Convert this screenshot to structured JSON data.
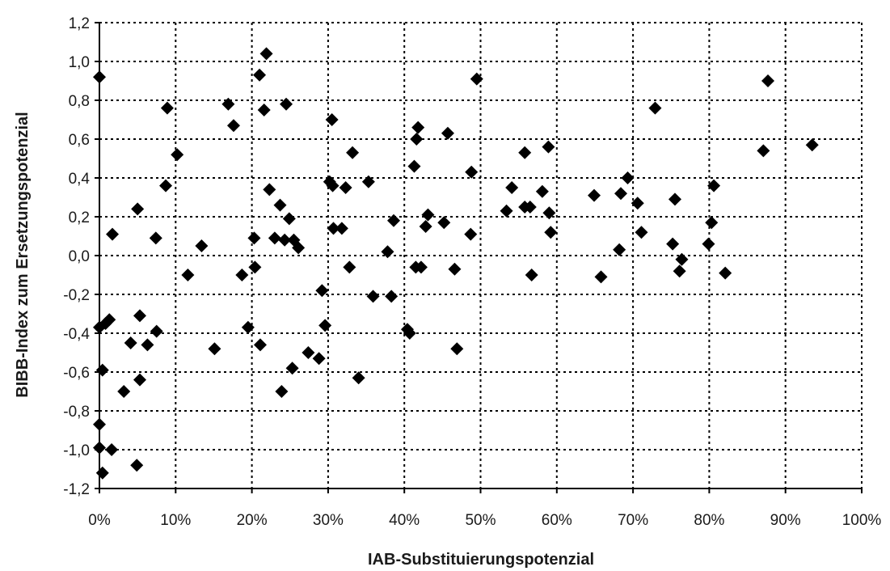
{
  "chart_data": {
    "type": "scatter",
    "title": "",
    "xlabel": "IAB-Substituierungspotenzial",
    "ylabel": "BIBB-Index zum Ersetzungspotenzial",
    "xlim": [
      0,
      100
    ],
    "ylim": [
      -1.2,
      1.2
    ],
    "grid": true,
    "legend": "none",
    "marker": "diamond",
    "marker_color": "#000000",
    "x_ticks": [
      {
        "value": 0,
        "label": "0%"
      },
      {
        "value": 10,
        "label": "10%"
      },
      {
        "value": 20,
        "label": "20%"
      },
      {
        "value": 30,
        "label": "30%"
      },
      {
        "value": 40,
        "label": "40%"
      },
      {
        "value": 50,
        "label": "50%"
      },
      {
        "value": 60,
        "label": "60%"
      },
      {
        "value": 70,
        "label": "70%"
      },
      {
        "value": 80,
        "label": "80%"
      },
      {
        "value": 90,
        "label": "90%"
      },
      {
        "value": 100,
        "label": "100%"
      }
    ],
    "y_ticks": [
      {
        "value": 1.2,
        "label": "1,2"
      },
      {
        "value": 1.0,
        "label": "1,0"
      },
      {
        "value": 0.8,
        "label": "0,8"
      },
      {
        "value": 0.6,
        "label": "0,6"
      },
      {
        "value": 0.4,
        "label": "0,4"
      },
      {
        "value": 0.2,
        "label": "0,2"
      },
      {
        "value": 0.0,
        "label": "0,0"
      },
      {
        "value": -0.2,
        "label": "-0,2"
      },
      {
        "value": -0.4,
        "label": "-0,4"
      },
      {
        "value": -0.6,
        "label": "-0,6"
      },
      {
        "value": -0.8,
        "label": "-0,8"
      },
      {
        "value": -1.0,
        "label": "-1,0"
      },
      {
        "value": -1.2,
        "label": "-1,2"
      }
    ],
    "series": [
      {
        "points": [
          {
            "x": 0.0,
            "y": 0.92
          },
          {
            "x": 0.0,
            "y": -0.37
          },
          {
            "x": 0.4,
            "y": -0.59
          },
          {
            "x": 0.8,
            "y": -0.35
          },
          {
            "x": 1.3,
            "y": -0.33
          },
          {
            "x": 1.7,
            "y": 0.11
          },
          {
            "x": 0.0,
            "y": -0.87
          },
          {
            "x": 0.0,
            "y": -0.99
          },
          {
            "x": 1.6,
            "y": -1.0
          },
          {
            "x": 0.4,
            "y": -1.12
          },
          {
            "x": 3.2,
            "y": -0.7
          },
          {
            "x": 4.1,
            "y": -0.45
          },
          {
            "x": 5.0,
            "y": 0.24
          },
          {
            "x": 5.3,
            "y": -0.31
          },
          {
            "x": 5.3,
            "y": -0.64
          },
          {
            "x": 4.9,
            "y": -1.08
          },
          {
            "x": 6.3,
            "y": -0.46
          },
          {
            "x": 7.4,
            "y": 0.09
          },
          {
            "x": 7.5,
            "y": -0.39
          },
          {
            "x": 8.7,
            "y": 0.36
          },
          {
            "x": 8.9,
            "y": 0.76
          },
          {
            "x": 10.2,
            "y": 0.52
          },
          {
            "x": 11.6,
            "y": -0.1
          },
          {
            "x": 13.4,
            "y": 0.05
          },
          {
            "x": 15.1,
            "y": -0.48
          },
          {
            "x": 16.9,
            "y": 0.78
          },
          {
            "x": 17.6,
            "y": 0.67
          },
          {
            "x": 18.7,
            "y": -0.1
          },
          {
            "x": 19.5,
            "y": -0.37
          },
          {
            "x": 20.3,
            "y": 0.09
          },
          {
            "x": 20.4,
            "y": -0.06
          },
          {
            "x": 21.0,
            "y": 0.93
          },
          {
            "x": 21.1,
            "y": -0.46
          },
          {
            "x": 21.6,
            "y": 0.75
          },
          {
            "x": 21.9,
            "y": 1.04
          },
          {
            "x": 22.3,
            "y": 0.34
          },
          {
            "x": 23.0,
            "y": 0.09
          },
          {
            "x": 23.7,
            "y": 0.26
          },
          {
            "x": 23.9,
            "y": -0.7
          },
          {
            "x": 24.3,
            "y": 0.08
          },
          {
            "x": 24.5,
            "y": 0.78
          },
          {
            "x": 24.9,
            "y": 0.19
          },
          {
            "x": 25.3,
            "y": -0.58
          },
          {
            "x": 25.5,
            "y": 0.08
          },
          {
            "x": 26.1,
            "y": 0.04
          },
          {
            "x": 27.4,
            "y": -0.5
          },
          {
            "x": 28.8,
            "y": -0.53
          },
          {
            "x": 29.2,
            "y": -0.18
          },
          {
            "x": 29.6,
            "y": -0.36
          },
          {
            "x": 30.2,
            "y": 0.38
          },
          {
            "x": 30.5,
            "y": 0.7
          },
          {
            "x": 30.6,
            "y": 0.36
          },
          {
            "x": 30.7,
            "y": 0.14
          },
          {
            "x": 31.8,
            "y": 0.14
          },
          {
            "x": 32.3,
            "y": 0.35
          },
          {
            "x": 32.8,
            "y": -0.06
          },
          {
            "x": 33.2,
            "y": 0.53
          },
          {
            "x": 34.0,
            "y": -0.63
          },
          {
            "x": 35.3,
            "y": 0.38
          },
          {
            "x": 35.9,
            "y": -0.21
          },
          {
            "x": 37.8,
            "y": 0.02
          },
          {
            "x": 38.3,
            "y": -0.21
          },
          {
            "x": 38.6,
            "y": 0.18
          },
          {
            "x": 40.4,
            "y": -0.38
          },
          {
            "x": 40.7,
            "y": -0.4
          },
          {
            "x": 41.3,
            "y": 0.46
          },
          {
            "x": 41.5,
            "y": -0.06
          },
          {
            "x": 41.6,
            "y": 0.6
          },
          {
            "x": 41.8,
            "y": 0.66
          },
          {
            "x": 42.2,
            "y": -0.06
          },
          {
            "x": 42.8,
            "y": 0.15
          },
          {
            "x": 43.1,
            "y": 0.21
          },
          {
            "x": 45.2,
            "y": 0.17
          },
          {
            "x": 45.7,
            "y": 0.63
          },
          {
            "x": 46.6,
            "y": -0.07
          },
          {
            "x": 46.9,
            "y": -0.48
          },
          {
            "x": 48.7,
            "y": 0.11
          },
          {
            "x": 48.8,
            "y": 0.43
          },
          {
            "x": 49.5,
            "y": 0.91
          },
          {
            "x": 53.4,
            "y": 0.23
          },
          {
            "x": 54.1,
            "y": 0.35
          },
          {
            "x": 55.8,
            "y": 0.25
          },
          {
            "x": 55.8,
            "y": 0.53
          },
          {
            "x": 56.5,
            "y": 0.25
          },
          {
            "x": 56.7,
            "y": -0.1
          },
          {
            "x": 58.1,
            "y": 0.33
          },
          {
            "x": 58.9,
            "y": 0.56
          },
          {
            "x": 59.0,
            "y": 0.22
          },
          {
            "x": 59.2,
            "y": 0.12
          },
          {
            "x": 64.9,
            "y": 0.31
          },
          {
            "x": 65.8,
            "y": -0.11
          },
          {
            "x": 68.2,
            "y": 0.03
          },
          {
            "x": 68.4,
            "y": 0.32
          },
          {
            "x": 69.3,
            "y": 0.4
          },
          {
            "x": 70.6,
            "y": 0.27
          },
          {
            "x": 71.1,
            "y": 0.12
          },
          {
            "x": 72.9,
            "y": 0.76
          },
          {
            "x": 75.2,
            "y": 0.06
          },
          {
            "x": 75.5,
            "y": 0.29
          },
          {
            "x": 76.1,
            "y": -0.08
          },
          {
            "x": 76.4,
            "y": -0.02
          },
          {
            "x": 79.9,
            "y": 0.06
          },
          {
            "x": 80.3,
            "y": 0.17
          },
          {
            "x": 80.6,
            "y": 0.36
          },
          {
            "x": 82.1,
            "y": -0.09
          },
          {
            "x": 87.1,
            "y": 0.54
          },
          {
            "x": 87.7,
            "y": 0.9
          },
          {
            "x": 93.5,
            "y": 0.57
          }
        ]
      }
    ]
  }
}
